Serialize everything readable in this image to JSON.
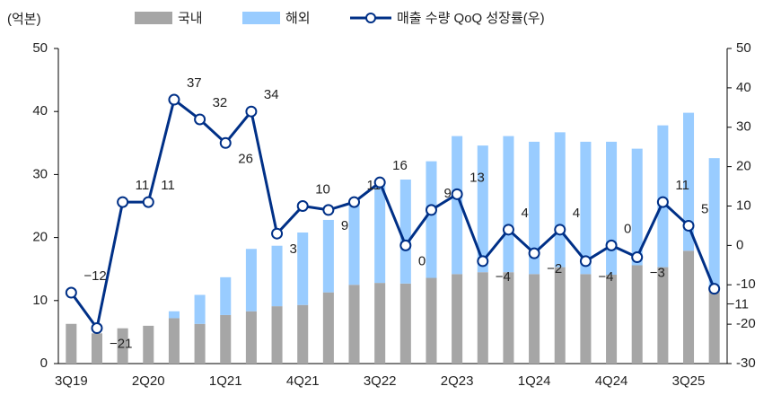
{
  "chart_data": {
    "type": "bar-line",
    "y_label": "(억본)",
    "categories": [
      "3Q19",
      null,
      null,
      "2Q20",
      null,
      null,
      "1Q21",
      null,
      null,
      "4Q21",
      null,
      null,
      "3Q22",
      null,
      null,
      "2Q23",
      null,
      null,
      "1Q24",
      null,
      null,
      "4Q24",
      null,
      null,
      "3Q25",
      null
    ],
    "series": [
      {
        "name": "국내",
        "color": "#a6a6a6",
        "stack": true,
        "values": [
          6.3,
          4.8,
          5.6,
          6.0,
          7.2,
          6.3,
          7.7,
          8.3,
          9.1,
          9.3,
          11.3,
          12.5,
          12.8,
          12.7,
          13.6,
          14.2,
          14.5,
          14.5,
          14.2,
          15.3,
          14.2,
          14.1,
          15.6,
          15.3,
          17.9,
          11.9
        ]
      },
      {
        "name": "해외",
        "color": "#99ccff",
        "stack": true,
        "values": [
          0,
          0,
          0,
          0,
          1.1,
          4.6,
          6.0,
          9.9,
          9.6,
          11.5,
          11.5,
          13.0,
          15.5,
          16.5,
          18.5,
          21.9,
          20.1,
          21.6,
          21.0,
          21.4,
          21.0,
          21.1,
          18.5,
          22.5,
          21.9,
          20.7
        ]
      },
      {
        "name": "매출 수량 QoQ 성장률(우)",
        "color": "#003087",
        "axis": "y2",
        "values": [
          -12,
          -21,
          11,
          11,
          37,
          32,
          26,
          34,
          3,
          10,
          9,
          11,
          16,
          0,
          9,
          13,
          -4,
          4,
          -2,
          4,
          -4,
          0,
          -3,
          11,
          5,
          -11
        ],
        "value_labels": [
          "−12",
          "−21",
          "11",
          "11",
          "37",
          "32",
          "26",
          "34",
          "3",
          "10",
          "9",
          "11",
          "16",
          "0",
          "9",
          "13",
          "−4",
          "4",
          "−2",
          "4",
          "−4",
          "0",
          "−3",
          "11",
          "5",
          "−11"
        ]
      }
    ],
    "ylim": [
      0,
      50
    ],
    "yticks": [
      0,
      10,
      20,
      30,
      40,
      50
    ],
    "y2lim": [
      -30,
      50
    ],
    "y2ticks": [
      -30,
      -20,
      -10,
      0,
      10,
      20,
      30,
      40,
      50
    ]
  }
}
